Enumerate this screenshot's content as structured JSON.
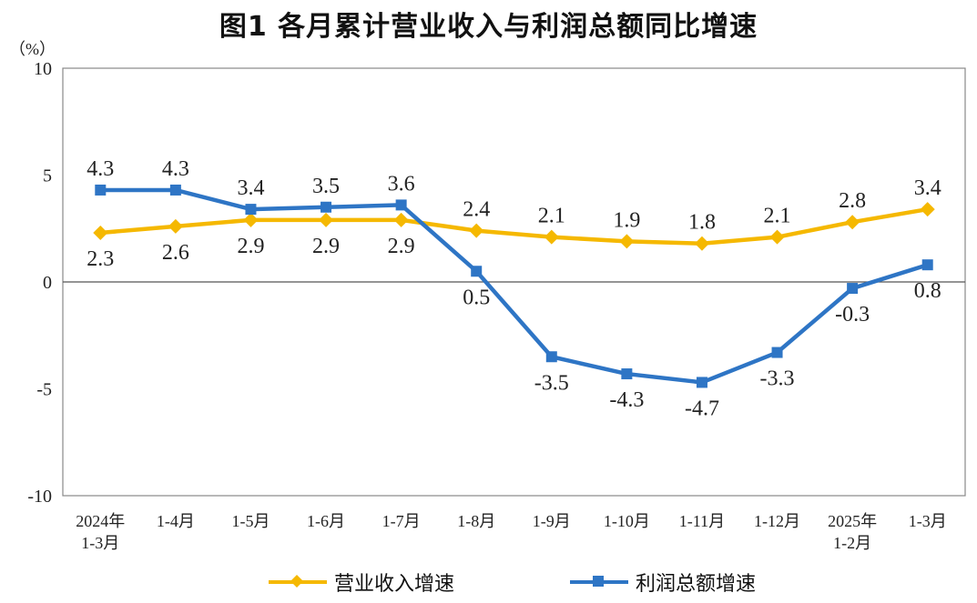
{
  "title": "图1  各月累计营业收入与利润总额同比增速",
  "unit": "（%）",
  "chart_data": {
    "type": "line",
    "categories": [
      [
        "2024年",
        "1-3月"
      ],
      [
        "1-4月"
      ],
      [
        "1-5月"
      ],
      [
        "1-6月"
      ],
      [
        "1-7月"
      ],
      [
        "1-8月"
      ],
      [
        "1-9月"
      ],
      [
        "1-10月"
      ],
      [
        "1-11月"
      ],
      [
        "1-12月"
      ],
      [
        "2025年",
        "1-2月"
      ],
      [
        "1-3月"
      ]
    ],
    "ylim": [
      -10,
      10
    ],
    "yticks": [
      "10",
      "5",
      "0",
      "-5",
      "-10"
    ],
    "ytick_values": [
      10,
      5,
      0,
      -5,
      -10
    ],
    "grid": false,
    "legend_position": "bottom",
    "series": [
      {
        "name": "营业收入增速",
        "color": "#F5B800",
        "marker": "diamond",
        "values": [
          2.3,
          2.6,
          2.9,
          2.9,
          2.9,
          2.4,
          2.1,
          1.9,
          1.8,
          2.1,
          2.8,
          3.4
        ],
        "labels": [
          "2.3",
          "2.6",
          "2.9",
          "2.9",
          "2.9",
          "2.4",
          "2.1",
          "1.9",
          "1.8",
          "2.1",
          "2.8",
          "3.4"
        ],
        "label_side": [
          "below",
          "below",
          "below",
          "below",
          "below",
          "above",
          "above",
          "above",
          "above",
          "above",
          "above",
          "above"
        ]
      },
      {
        "name": "利润总额增速",
        "color": "#2E75C5",
        "marker": "square",
        "values": [
          4.3,
          4.3,
          3.4,
          3.5,
          3.6,
          0.5,
          -3.5,
          -4.3,
          -4.7,
          -3.3,
          -0.3,
          0.8
        ],
        "labels": [
          "4.3",
          "4.3",
          "3.4",
          "3.5",
          "3.6",
          "0.5",
          "-3.5",
          "-4.3",
          "-4.7",
          "-3.3",
          "-0.3",
          "0.8"
        ],
        "label_side": [
          "above",
          "above",
          "above",
          "above",
          "above",
          "below",
          "below",
          "below",
          "below",
          "below",
          "below",
          "below"
        ]
      }
    ]
  }
}
